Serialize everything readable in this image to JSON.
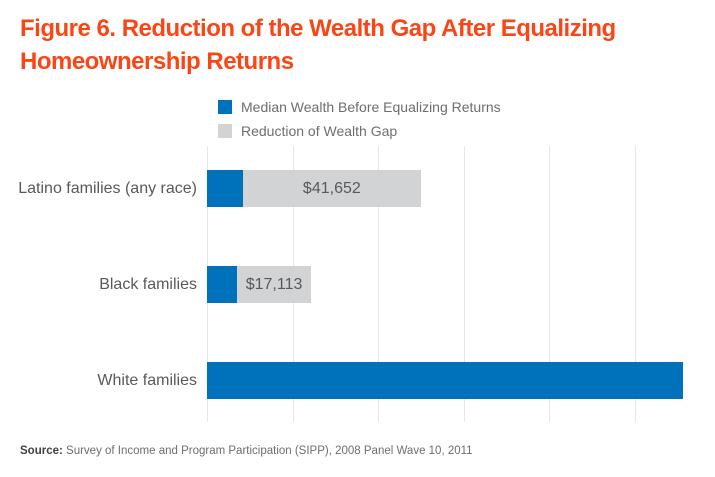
{
  "figure": {
    "title": "Figure 6. Reduction of the Wealth Gap After Equalizing Homeownership Returns",
    "title_lines": [
      "Figure 6. Reduction of the Wealth Gap After Equalizing",
      "Homeownership Returns"
    ],
    "source_prefix": "Source:",
    "source_text": " Survey of Income and Program Participation (SIPP), 2008 Panel Wave 10, 2011"
  },
  "colors": {
    "title_orange": "#FA4616",
    "bar_blue": "#0072BC",
    "bar_gray": "#D1D3D4",
    "gridline": "#E6E7E8",
    "category_text": "#58595B",
    "legend_text": "#6D6E71"
  },
  "chart_data": {
    "type": "bar",
    "orientation": "horizontal",
    "stacked": true,
    "title": "Figure 6. Reduction of the Wealth Gap After Equalizing Homeownership Returns",
    "categories": [
      "Latino families (any race)",
      "Black families",
      "White families"
    ],
    "series": [
      {
        "name": "Median Wealth Before Equalizing Returns",
        "color": "#0072BC",
        "values": [
          8348,
          7113,
          111146
        ],
        "data_labels": [
          "",
          "",
          ""
        ]
      },
      {
        "name": "Reduction of Wealth Gap",
        "color": "#D1D3D4",
        "values": [
          41652,
          17113,
          0
        ],
        "data_labels": [
          "$41,652",
          "$17,113",
          ""
        ]
      }
    ],
    "x_axis": {
      "min": 0,
      "max": 118000,
      "gridline_interval": 20000,
      "tick_labels_visible": false
    },
    "y_axis": {
      "label": ""
    },
    "grid": true,
    "legend_position": "top"
  }
}
